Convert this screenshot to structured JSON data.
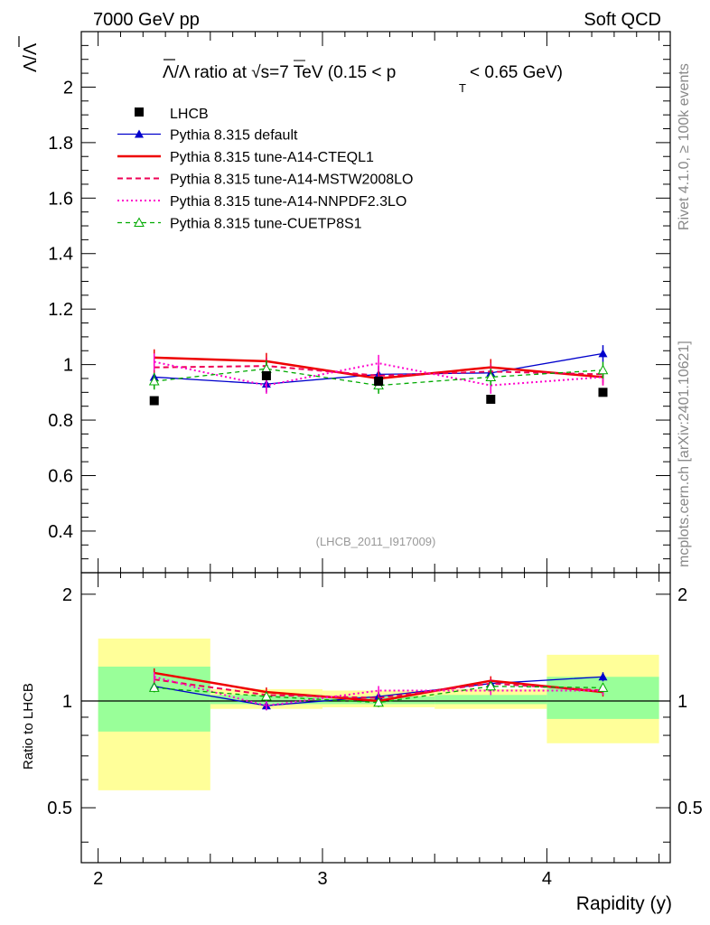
{
  "header": {
    "left": "7000 GeV pp",
    "right": "Soft QCD"
  },
  "side_texts": {
    "rivet": "Rivet 4.1.0, ≥ 100k events",
    "mcplots": "mcplots.cern.ch [arXiv:2401.10621]"
  },
  "chart_data": {
    "type": "line",
    "title_text": "Λ/Λ ratio at √s=7 TeV (0.15 < p",
    "title_sub": "T",
    "title_tail": " < 0.65 GeV)",
    "ylabel": "Λ/Λ",
    "xlabel": "Rapidity (y)",
    "watermark": "(LHCB_2011_I917009)",
    "ratio_ylabel": "Ratio to LHCB",
    "xlim": [
      1.925,
      4.55
    ],
    "ylim": [
      0.25,
      2.2
    ],
    "ratio_ylim": [
      0.35,
      2.3
    ],
    "x_ticks": [
      "2",
      "3",
      "4"
    ],
    "y_ticks": [
      "0.4",
      "0.6",
      "0.8",
      "1",
      "1.2",
      "1.4",
      "1.6",
      "1.8",
      "2"
    ],
    "ratio_ticks": [
      "0.5",
      "1",
      "2"
    ],
    "x": [
      2.25,
      2.75,
      3.25,
      3.75,
      4.25
    ],
    "x_bin_edges": [
      2.0,
      2.5,
      3.0,
      3.5,
      4.0,
      4.5
    ],
    "data": {
      "name": "LHCB",
      "values": [
        0.87,
        0.96,
        0.94,
        0.875,
        0.9
      ]
    },
    "band_inner": [
      [
        0.82,
        1.25
      ],
      [
        0.98,
        1.04
      ],
      [
        0.98,
        1.03
      ],
      [
        0.98,
        1.04
      ],
      [
        0.89,
        1.17
      ]
    ],
    "band_outer": [
      [
        0.56,
        1.5
      ],
      [
        0.95,
        1.08
      ],
      [
        0.96,
        1.07
      ],
      [
        0.95,
        1.08
      ],
      [
        0.76,
        1.35
      ]
    ],
    "series": [
      {
        "name": "Pythia 8.315 default",
        "color": "#0000cc",
        "values": [
          0.955,
          0.93,
          0.965,
          0.97,
          1.04
        ],
        "ratio": [
          1.1,
          0.97,
          1.03,
          1.12,
          1.17
        ]
      },
      {
        "name": "Pythia 8.315 tune-A14-CTEQL1",
        "color": "#ee0000",
        "values": [
          1.025,
          1.012,
          0.95,
          0.99,
          0.955
        ],
        "ratio": [
          1.2,
          1.06,
          1.0,
          1.14,
          1.06
        ]
      },
      {
        "name": "Pythia 8.315 tune-A14-MSTW2008LO",
        "color": "#ee0055",
        "values": [
          0.99,
          0.995,
          0.96,
          0.975,
          0.965
        ],
        "ratio": [
          1.15,
          1.04,
          1.02,
          1.12,
          1.07
        ]
      },
      {
        "name": "Pythia 8.315 tune-A14-NNPDF2.3LO",
        "color": "#ff00cc",
        "values": [
          1.01,
          0.925,
          1.005,
          0.925,
          0.955
        ],
        "ratio": [
          1.17,
          0.97,
          1.07,
          1.07,
          1.07
        ]
      },
      {
        "name": "Pythia 8.315 tune-CUETP8S1",
        "color": "#00aa00",
        "values": [
          0.94,
          0.985,
          0.925,
          0.955,
          0.98
        ],
        "ratio": [
          1.09,
          1.03,
          0.99,
          1.1,
          1.09
        ]
      }
    ]
  }
}
